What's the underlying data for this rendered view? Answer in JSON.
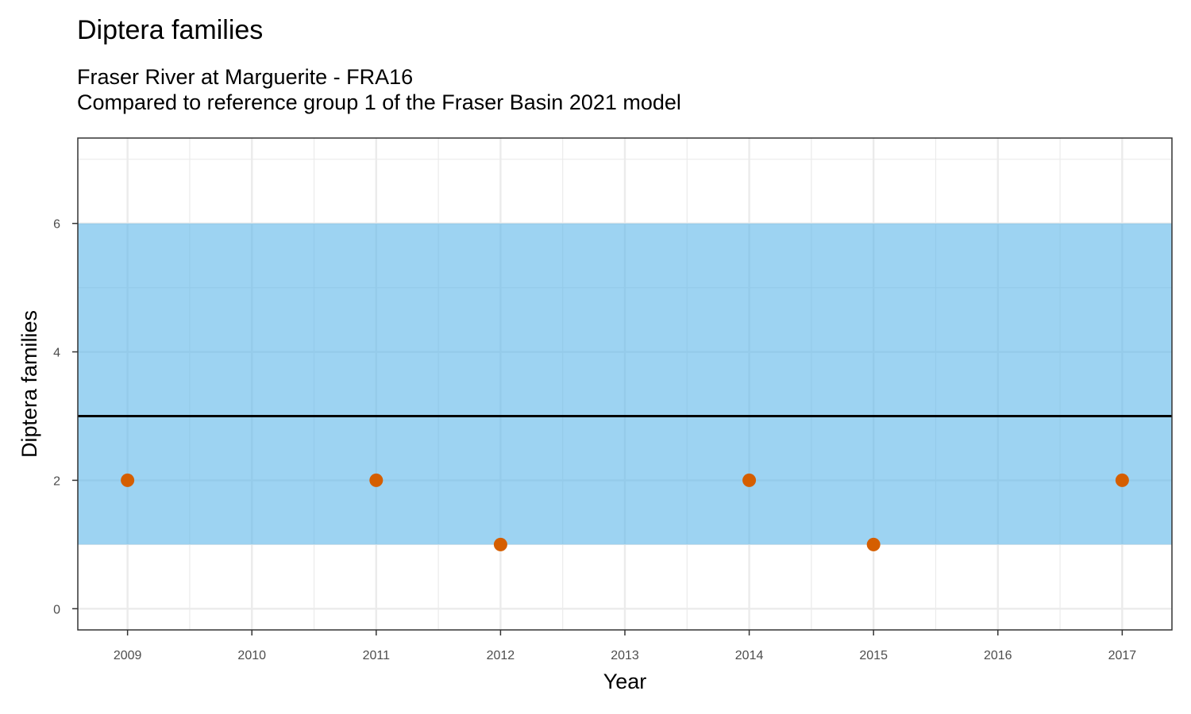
{
  "chart_data": {
    "type": "scatter",
    "title": "Diptera families",
    "subtitle": [
      "Fraser River at Marguerite - FRA16",
      "Compared to reference group 1 of the Fraser Basin 2021 model"
    ],
    "xlabel": "Year",
    "ylabel": "Diptera families",
    "x_ticks": [
      2009,
      2010,
      2011,
      2012,
      2013,
      2014,
      2015,
      2016,
      2017
    ],
    "y_ticks": [
      0,
      2,
      4,
      6
    ],
    "xlim": [
      2008.6,
      2017.4
    ],
    "ylim": [
      -0.33,
      7.33
    ],
    "grid": true,
    "reference_band": {
      "ymin": 1,
      "ymax": 6,
      "color": "#56B4E9"
    },
    "reference_line": {
      "y": 3,
      "color": "#000000"
    },
    "series": [
      {
        "color": "#D55E00",
        "x": [
          2009,
          2011,
          2012,
          2014,
          2015,
          2017
        ],
        "y": [
          2,
          2,
          1,
          2,
          1,
          2
        ]
      }
    ]
  }
}
